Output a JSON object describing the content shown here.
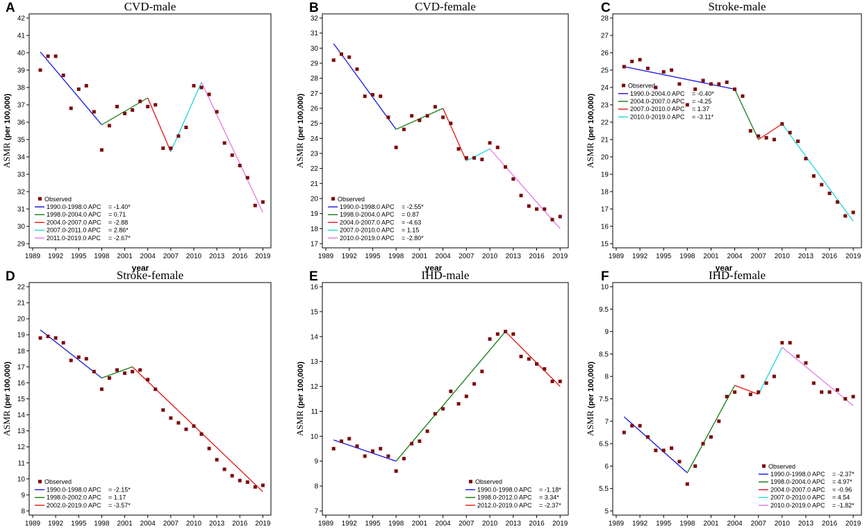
{
  "figure": {
    "x_axis_label": "year",
    "y_axis_label_main": "ASMR",
    "y_axis_label_unit": "(per 100,000)",
    "observed_label": "Observed",
    "observed_color": "#7b0e0e"
  },
  "segment_colors": [
    "#1414e0",
    "#137a13",
    "#e01414",
    "#1fd6d6",
    "#e478e4"
  ],
  "chart_data": [
    {
      "letter": "A",
      "title": "CVD-male",
      "type": "line",
      "ylim": [
        29,
        42
      ],
      "yticks": [
        29,
        30,
        31,
        32,
        33,
        34,
        35,
        36,
        37,
        38,
        39,
        40,
        41,
        42
      ],
      "xlim": [
        1989,
        2019.6
      ],
      "xtick_labels": [
        "1989",
        "1992",
        "1995",
        "1998",
        "2001",
        "2004",
        "2007",
        "2010",
        "2013",
        "2016",
        "2019"
      ],
      "observed": {
        "x": [
          1990,
          1991,
          1992,
          1993,
          1994,
          1995,
          1996,
          1997,
          1998,
          1999,
          2000,
          2001,
          2002,
          2003,
          2004,
          2005,
          2006,
          2007,
          2008,
          2009,
          2010,
          2011,
          2012,
          2013,
          2014,
          2015,
          2016,
          2017,
          2018,
          2019
        ],
        "y": [
          39.0,
          39.8,
          39.8,
          38.7,
          36.8,
          37.9,
          38.1,
          36.6,
          34.4,
          35.8,
          36.9,
          36.5,
          36.7,
          37.2,
          36.9,
          37.0,
          34.5,
          34.5,
          35.2,
          35.7,
          38.1,
          38.0,
          37.6,
          36.6,
          34.8,
          34.1,
          33.5,
          32.8,
          31.2,
          31.4
        ]
      },
      "legend_position": "bottom-left",
      "segments": [
        {
          "label": "1990.0-1998.0 APC",
          "value": "= -1.40*",
          "x": [
            1990,
            1998
          ],
          "y": [
            40.05,
            35.85
          ],
          "color_index": 0
        },
        {
          "label": "1998.0-2004.0 APC",
          "value": "= 0.71",
          "x": [
            1998,
            2004
          ],
          "y": [
            35.85,
            37.4
          ],
          "color_index": 1
        },
        {
          "label": "2004.0-2007.0 APC",
          "value": "= -2.88",
          "x": [
            2004,
            2007
          ],
          "y": [
            37.4,
            34.3
          ],
          "color_index": 2
        },
        {
          "label": "2007.0-2011.0 APC",
          "value": "= 2.86*",
          "x": [
            2007,
            2011
          ],
          "y": [
            34.3,
            38.3
          ],
          "color_index": 3
        },
        {
          "label": "2011.0-2019.0 APC",
          "value": "= -2.67*",
          "x": [
            2011,
            2019
          ],
          "y": [
            38.3,
            30.8
          ],
          "color_index": 4
        }
      ]
    },
    {
      "letter": "B",
      "title": "CVD-female",
      "type": "line",
      "ylim": [
        17,
        32
      ],
      "yticks": [
        17,
        18,
        19,
        20,
        21,
        22,
        23,
        24,
        25,
        26,
        27,
        28,
        29,
        30,
        31,
        32
      ],
      "xlim": [
        1989,
        2019.6
      ],
      "xtick_labels": [
        "1989",
        "1992",
        "1995",
        "1998",
        "2001",
        "2004",
        "2007",
        "2010",
        "2013",
        "2016",
        "2019"
      ],
      "observed": {
        "x": [
          1990,
          1991,
          1992,
          1993,
          1994,
          1995,
          1996,
          1997,
          1998,
          1999,
          2000,
          2001,
          2002,
          2003,
          2004,
          2005,
          2006,
          2007,
          2008,
          2009,
          2010,
          2011,
          2012,
          2013,
          2014,
          2015,
          2016,
          2017,
          2018,
          2019
        ],
        "y": [
          29.2,
          29.6,
          29.4,
          28.6,
          26.8,
          26.9,
          26.8,
          25.4,
          23.4,
          24.6,
          25.5,
          25.2,
          25.5,
          26.1,
          25.4,
          25.0,
          23.3,
          22.7,
          22.7,
          22.6,
          23.7,
          23.4,
          22.1,
          21.3,
          20.2,
          19.5,
          19.3,
          19.3,
          18.6,
          18.8
        ]
      },
      "legend_position": "bottom-left",
      "segments": [
        {
          "label": "1990.0-1998.0 APC",
          "value": "= -2.55*",
          "x": [
            1990,
            1998
          ],
          "y": [
            30.3,
            24.6
          ],
          "color_index": 0
        },
        {
          "label": "1998.0-2004.0 APC",
          "value": "= 0.87",
          "x": [
            1998,
            2004
          ],
          "y": [
            24.6,
            26.0
          ],
          "color_index": 1
        },
        {
          "label": "2004.0-2007.0 APC",
          "value": "= -4.63",
          "x": [
            2004,
            2007
          ],
          "y": [
            26.0,
            22.5
          ],
          "color_index": 2
        },
        {
          "label": "2007.0-2010.0 APC",
          "value": "= 1.15",
          "x": [
            2007,
            2010
          ],
          "y": [
            22.5,
            23.3
          ],
          "color_index": 3
        },
        {
          "label": "2010.0-2019.0 APC",
          "value": "= -2.80*",
          "x": [
            2010,
            2019
          ],
          "y": [
            23.3,
            18.0
          ],
          "color_index": 4
        }
      ]
    },
    {
      "letter": "C",
      "title": "Stroke-male",
      "type": "line",
      "ylim": [
        15,
        28
      ],
      "yticks": [
        15,
        16,
        17,
        18,
        19,
        20,
        21,
        22,
        23,
        24,
        25,
        26,
        27,
        28
      ],
      "xlim": [
        1989,
        2019.6
      ],
      "xtick_labels": [
        "1989",
        "1992",
        "1995",
        "1998",
        "2001",
        "2004",
        "2007",
        "2010",
        "2013",
        "2016",
        "2019"
      ],
      "observed": {
        "x": [
          1990,
          1991,
          1992,
          1993,
          1994,
          1995,
          1996,
          1997,
          1998,
          1999,
          2000,
          2001,
          2002,
          2003,
          2004,
          2005,
          2006,
          2007,
          2008,
          2009,
          2010,
          2011,
          2012,
          2013,
          2014,
          2015,
          2016,
          2017,
          2018,
          2019
        ],
        "y": [
          25.2,
          25.5,
          25.6,
          25.1,
          24.0,
          24.9,
          25.0,
          24.2,
          23.0,
          23.9,
          24.4,
          24.2,
          24.2,
          24.3,
          23.9,
          23.5,
          21.5,
          21.2,
          21.1,
          21.0,
          21.9,
          21.4,
          20.9,
          19.9,
          18.9,
          18.4,
          17.9,
          17.4,
          16.6,
          16.8
        ]
      },
      "legend_position": "top-left",
      "segments": [
        {
          "label": "1990.0-2004.0 APC",
          "value": "= -0.40*",
          "x": [
            1990,
            2004
          ],
          "y": [
            25.2,
            23.9
          ],
          "color_index": 0
        },
        {
          "label": "2004.0-2007.0 APC",
          "value": "= -4.25",
          "x": [
            2004,
            2007
          ],
          "y": [
            23.9,
            21.0
          ],
          "color_index": 1
        },
        {
          "label": "2007.0-2010.0 APC",
          "value": "= 1.37",
          "x": [
            2007,
            2010
          ],
          "y": [
            21.0,
            21.9
          ],
          "color_index": 2
        },
        {
          "label": "2010.0-2019.0 APC",
          "value": "= -3.11*",
          "x": [
            2010,
            2019
          ],
          "y": [
            21.9,
            16.3
          ],
          "color_index": 3
        }
      ]
    },
    {
      "letter": "D",
      "title": "Stroke-female",
      "type": "line",
      "ylim": [
        8,
        22
      ],
      "yticks": [
        8,
        9,
        10,
        11,
        12,
        13,
        14,
        15,
        16,
        17,
        18,
        19,
        20,
        21,
        22
      ],
      "xlim": [
        1989,
        2019.6
      ],
      "xtick_labels": [
        "1989",
        "1992",
        "1995",
        "1998",
        "2001",
        "2004",
        "2007",
        "2010",
        "2013",
        "2016",
        "2019"
      ],
      "observed": {
        "x": [
          1990,
          1991,
          1992,
          1993,
          1994,
          1995,
          1996,
          1997,
          1998,
          1999,
          2000,
          2001,
          2002,
          2003,
          2004,
          2005,
          2006,
          2007,
          2008,
          2009,
          2010,
          2011,
          2012,
          2013,
          2014,
          2015,
          2016,
          2017,
          2018,
          2019
        ],
        "y": [
          18.8,
          18.9,
          18.8,
          18.5,
          17.4,
          17.6,
          17.5,
          16.7,
          15.6,
          16.3,
          16.8,
          16.6,
          16.7,
          16.8,
          16.2,
          15.6,
          14.3,
          13.8,
          13.5,
          13.1,
          13.3,
          12.8,
          11.9,
          11.2,
          10.6,
          10.2,
          9.9,
          9.8,
          9.5,
          9.6
        ]
      },
      "legend_position": "bottom-left",
      "segments": [
        {
          "label": "1990.0-1998.0 APC",
          "value": "= -2.15*",
          "x": [
            1990,
            1998
          ],
          "y": [
            19.3,
            16.3
          ],
          "color_index": 0
        },
        {
          "label": "1998.0-2002.0 APC",
          "value": "= 1.17",
          "x": [
            1998,
            2002
          ],
          "y": [
            16.3,
            17.0
          ],
          "color_index": 1
        },
        {
          "label": "2002.0-2019.0 APC",
          "value": "= -3.57*",
          "x": [
            2002,
            2019
          ],
          "y": [
            17.0,
            9.2
          ],
          "color_index": 2
        }
      ]
    },
    {
      "letter": "E",
      "title": "IHD-male",
      "type": "line",
      "ylim": [
        7,
        16
      ],
      "yticks": [
        7,
        8,
        9,
        10,
        11,
        12,
        13,
        14,
        15,
        16
      ],
      "xlim": [
        1989,
        2019.6
      ],
      "xtick_labels": [
        "1989",
        "1992",
        "1995",
        "1998",
        "2001",
        "2004",
        "2007",
        "2010",
        "2013",
        "2016",
        "2019"
      ],
      "observed": {
        "x": [
          1990,
          1991,
          1992,
          1993,
          1994,
          1995,
          1996,
          1997,
          1998,
          1999,
          2000,
          2001,
          2002,
          2003,
          2004,
          2005,
          2006,
          2007,
          2008,
          2009,
          2010,
          2011,
          2012,
          2013,
          2014,
          2015,
          2016,
          2017,
          2018,
          2019
        ],
        "y": [
          9.5,
          9.8,
          9.9,
          9.6,
          9.2,
          9.4,
          9.5,
          9.2,
          8.6,
          9.1,
          9.7,
          9.8,
          10.2,
          10.9,
          11.1,
          11.8,
          11.3,
          11.6,
          12.1,
          12.6,
          13.9,
          14.1,
          14.2,
          14.1,
          13.2,
          13.1,
          12.9,
          12.7,
          12.2,
          12.2
        ]
      },
      "legend_position": "bottom-right",
      "segments": [
        {
          "label": "1990.0-1998.0 APC",
          "value": "= -1.18*",
          "x": [
            1990,
            1998
          ],
          "y": [
            9.85,
            9.0
          ],
          "color_index": 0
        },
        {
          "label": "1998.0-2012.0 APC",
          "value": "= 3.34*",
          "x": [
            1998,
            2012
          ],
          "y": [
            9.0,
            14.2
          ],
          "color_index": 1
        },
        {
          "label": "2012.0-2019.0 APC",
          "value": "= -2.37*",
          "x": [
            2012,
            2019
          ],
          "y": [
            14.2,
            12.0
          ],
          "color_index": 2
        }
      ]
    },
    {
      "letter": "F",
      "title": "IHD-female",
      "type": "line",
      "ylim": [
        5,
        10
      ],
      "yticks": [
        5,
        5.5,
        6,
        6.5,
        7,
        7.5,
        8,
        8.5,
        9,
        9.5,
        10
      ],
      "xlim": [
        1989,
        2019.6
      ],
      "xtick_labels": [
        "1989",
        "1992",
        "1995",
        "1998",
        "2001",
        "2004",
        "2007",
        "2010",
        "2013",
        "2016",
        "2019"
      ],
      "observed": {
        "x": [
          1990,
          1991,
          1992,
          1993,
          1994,
          1995,
          1996,
          1997,
          1998,
          1999,
          2000,
          2001,
          2002,
          2003,
          2004,
          2005,
          2006,
          2007,
          2008,
          2009,
          2010,
          2011,
          2012,
          2013,
          2014,
          2015,
          2016,
          2017,
          2018,
          2019
        ],
        "y": [
          6.75,
          6.9,
          6.9,
          6.65,
          6.35,
          6.35,
          6.4,
          6.1,
          5.6,
          6.0,
          6.5,
          6.65,
          7.0,
          7.55,
          7.65,
          8.0,
          7.6,
          7.65,
          7.85,
          8.0,
          8.75,
          8.75,
          8.45,
          8.3,
          7.85,
          7.65,
          7.65,
          7.7,
          7.5,
          7.55
        ]
      },
      "legend_position": "bottom-right",
      "segments": [
        {
          "label": "1990.0-1998.0 APC",
          "value": "= -2.37*",
          "x": [
            1990,
            1998
          ],
          "y": [
            7.1,
            5.85
          ],
          "color_index": 0
        },
        {
          "label": "1998.0-2004.0 APC",
          "value": "= 4.97*",
          "x": [
            1998,
            2004
          ],
          "y": [
            5.85,
            7.8
          ],
          "color_index": 1
        },
        {
          "label": "2004.0-2007.0 APC",
          "value": "= -0.96",
          "x": [
            2004,
            2007
          ],
          "y": [
            7.8,
            7.6
          ],
          "color_index": 2
        },
        {
          "label": "2007.0-2010.0 APC",
          "value": "= 4.54",
          "x": [
            2007,
            2010
          ],
          "y": [
            7.6,
            8.65
          ],
          "color_index": 3
        },
        {
          "label": "2010.0-2019.0 APC",
          "value": "= -1.82*",
          "x": [
            2010,
            2019
          ],
          "y": [
            8.65,
            7.35
          ],
          "color_index": 4
        }
      ]
    }
  ]
}
